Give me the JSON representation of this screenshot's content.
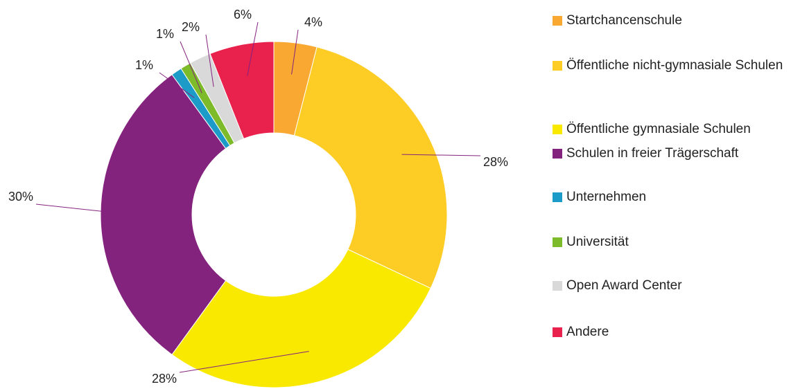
{
  "chart_data": {
    "type": "donut",
    "categories": [
      "Startchancenschule",
      "Öffentliche nicht-gymnasiale Schulen",
      "Öffentliche gymnasiale Schulen",
      "Schulen in freier Trägerschaft",
      "Unternehmen",
      "Universität",
      "Open Award Center",
      "Andere"
    ],
    "values": [
      4,
      28,
      28,
      30,
      1,
      1,
      2,
      6
    ],
    "value_labels": [
      "4%",
      "28%",
      "28%",
      "30%",
      "1%",
      "1%",
      "2%",
      "6%"
    ],
    "colors": [
      "#F9A832",
      "#FDCD26",
      "#F9E900",
      "#84237E",
      "#1C9BC8",
      "#7EBB2A",
      "#D9D9D9",
      "#E8214D"
    ]
  }
}
